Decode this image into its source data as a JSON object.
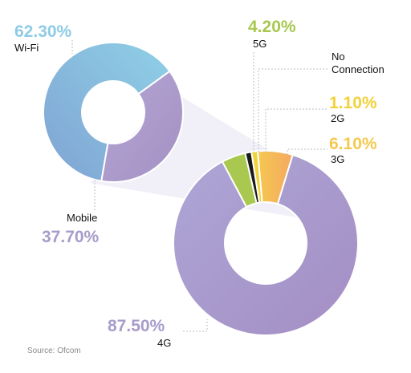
{
  "chart_data": [
    {
      "type": "pie",
      "style": "donut",
      "categories": [
        "Wi-Fi",
        "Mobile"
      ],
      "values": [
        62.3,
        37.7
      ],
      "value_labels": [
        "62.30%",
        "37.70%"
      ],
      "colors": [
        "#8ec9e6",
        "#a99acb"
      ]
    },
    {
      "type": "pie",
      "style": "donut",
      "categories": [
        "4G",
        "5G",
        "No Connection",
        "2G",
        "3G"
      ],
      "values": [
        87.5,
        4.2,
        1.1,
        1.1,
        6.1
      ],
      "value_labels": [
        "87.50%",
        "4.20%",
        "",
        "1.10%",
        "6.10%"
      ],
      "colors": [
        "#a89ccb",
        "#a8c84f",
        "#1a1a1a",
        "#f2d23a",
        "#f5b55a"
      ]
    }
  ],
  "source": "Source: Ofcom"
}
